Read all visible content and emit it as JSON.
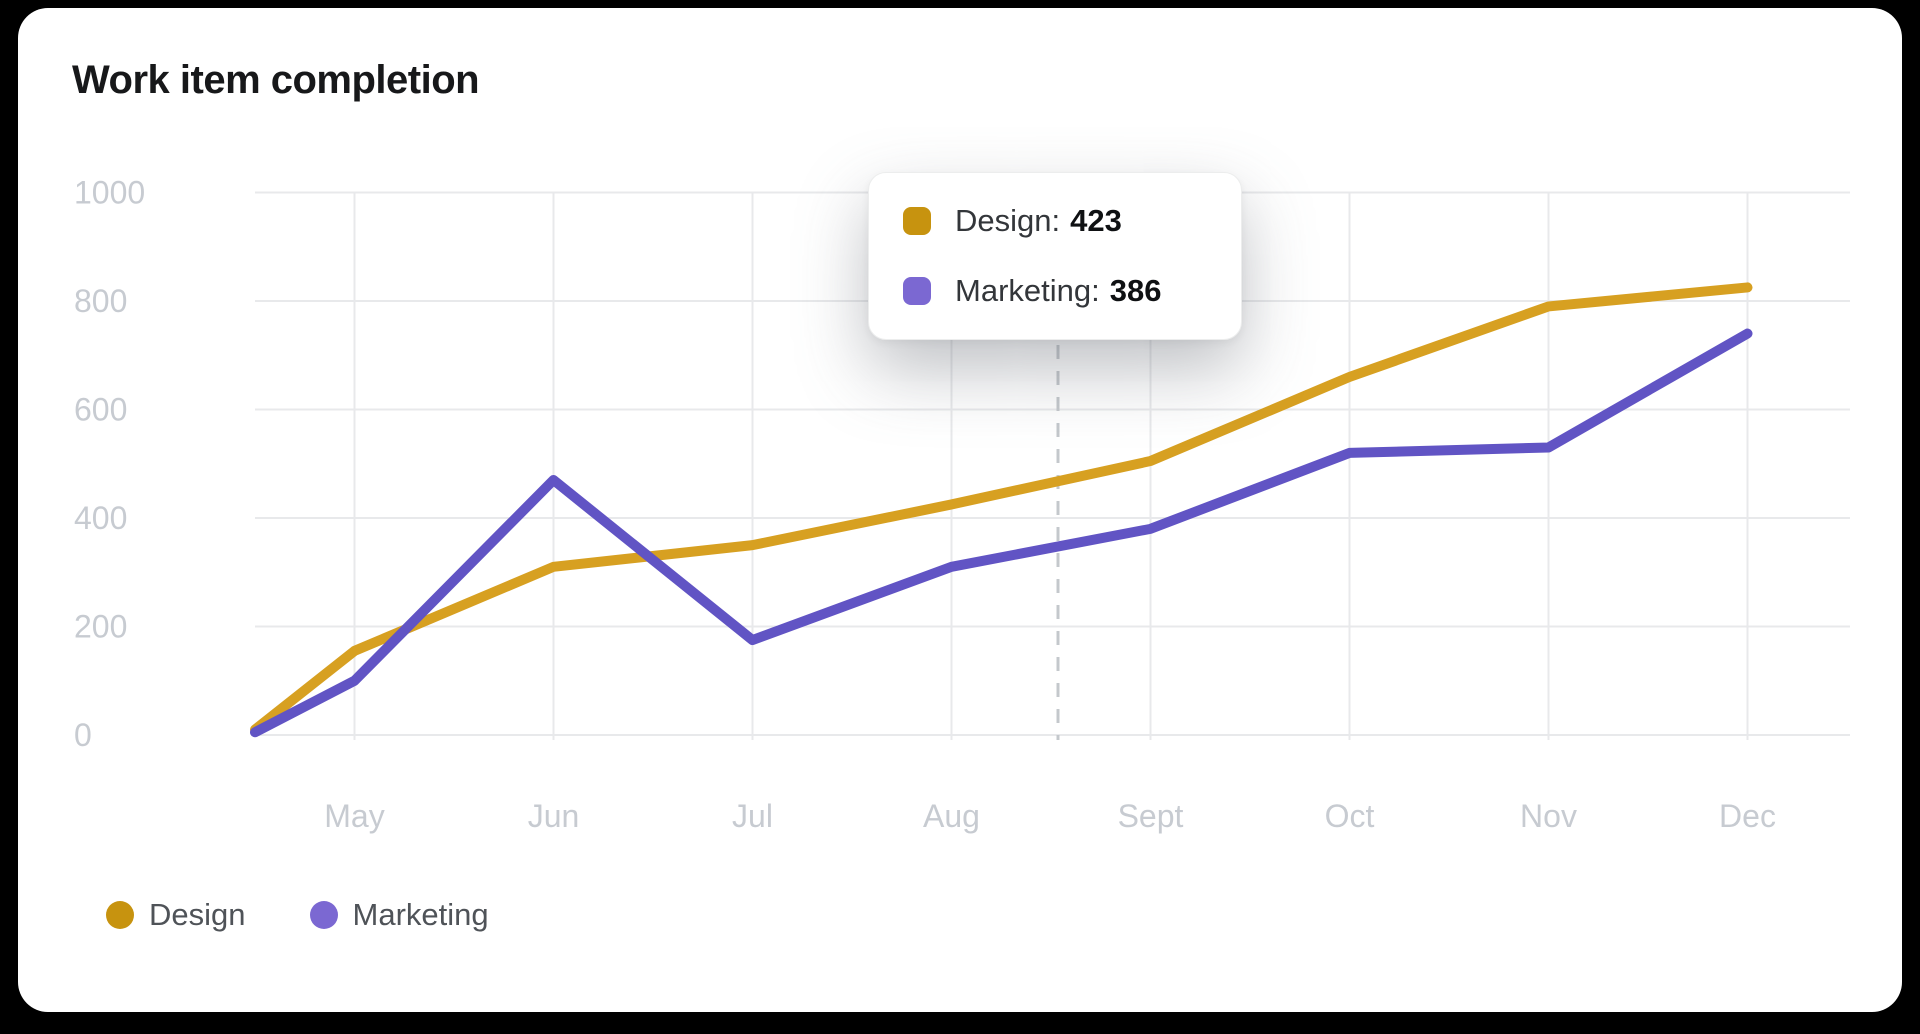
{
  "card": {
    "background": "#ffffff",
    "page_background": "#000000"
  },
  "header": {
    "title": "Work item completion"
  },
  "colors": {
    "design_line": "#D7A021",
    "design_swatch": "#C7930F",
    "marketing_line": "#6154C4",
    "marketing_swatch": "#7B68D2",
    "grid": "#E8E9EB",
    "axis_label": "#C7CBD1",
    "hover_line": "#C4C8CC"
  },
  "chart_data": {
    "type": "line",
    "title": "Work item completion",
    "categories": [
      "May",
      "Jun",
      "Jul",
      "Aug",
      "Sept",
      "Oct",
      "Nov",
      "Dec"
    ],
    "y_ticks": [
      0,
      200,
      400,
      600,
      800,
      1000
    ],
    "ylim": [
      0,
      1000
    ],
    "grid": true,
    "legend_position": "bottom-left",
    "series": [
      {
        "name": "Design",
        "color": "#C7930F",
        "line_color": "#D7A021",
        "edge_start_value": 10,
        "values": [
          155,
          310,
          350,
          425,
          505,
          660,
          790,
          825
        ]
      },
      {
        "name": "Marketing",
        "color": "#7B68D2",
        "line_color": "#6154C4",
        "edge_start_value": 5,
        "values": [
          100,
          470,
          175,
          310,
          380,
          520,
          530,
          740
        ]
      }
    ],
    "hover": {
      "x_between": [
        "Aug",
        "Sept"
      ],
      "rows": [
        {
          "label": "Design:",
          "value": "423"
        },
        {
          "label": "Marketing:",
          "value": "386"
        }
      ]
    }
  }
}
